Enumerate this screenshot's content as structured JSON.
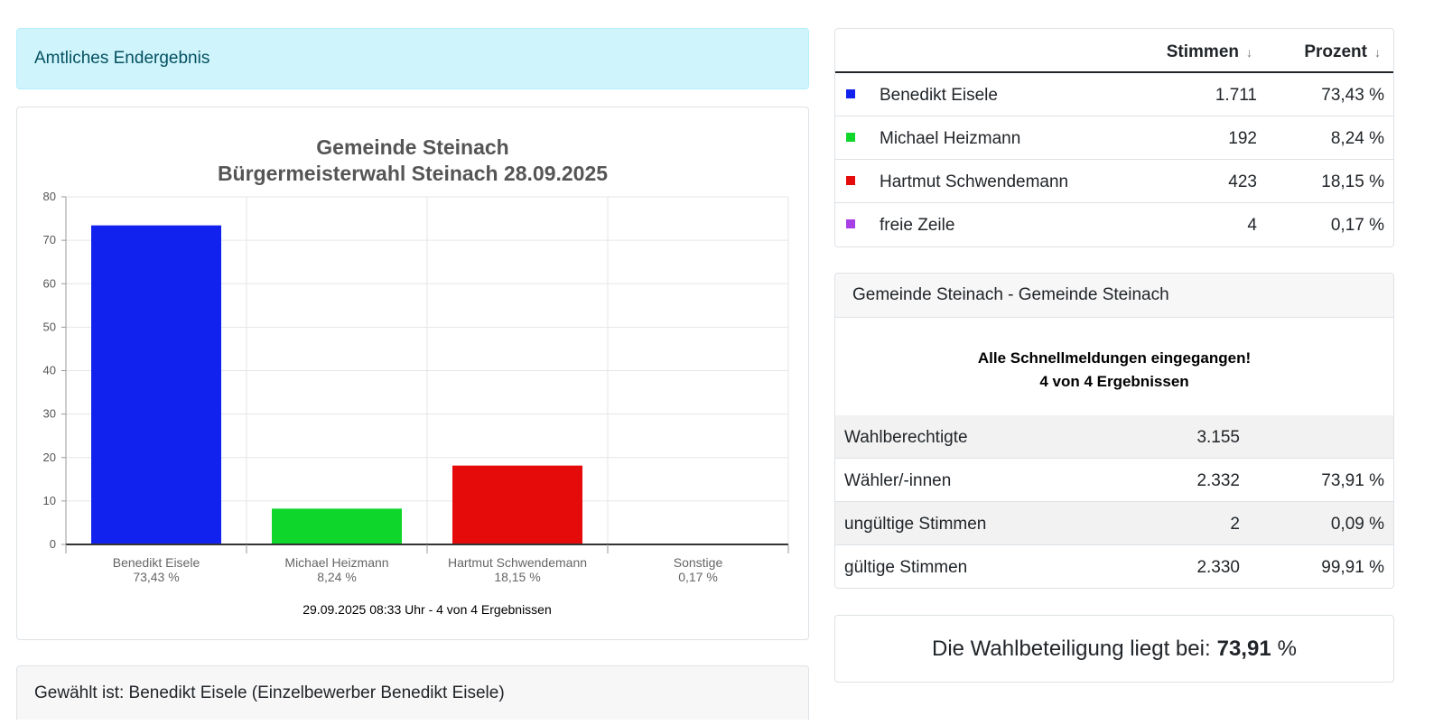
{
  "alert": {
    "text": "Amtliches Endergebnis"
  },
  "chart_data": {
    "type": "bar",
    "title": "Gemeinde Steinach",
    "subtitle": "Bürgermeisterwahl Steinach 28.09.2025",
    "categories": [
      "Benedikt Eisele",
      "Michael Heizmann",
      "Hartmut Schwendemann",
      "Sonstige"
    ],
    "value_labels": [
      "73,43 %",
      "8,24 %",
      "18,15 %",
      "0,17 %"
    ],
    "values": [
      73.43,
      8.24,
      18.15,
      0.17
    ],
    "colors": [
      "#1122ee",
      "#0fd62a",
      "#e50b0b",
      "#a83ee6"
    ],
    "ylim": [
      0,
      80
    ],
    "yticks": [
      0,
      10,
      20,
      30,
      40,
      50,
      60,
      70,
      80
    ],
    "grid": true,
    "footer": "29.09.2025 08:33 Uhr - 4 von 4 Ergebnissen"
  },
  "elected": {
    "text": "Gewählt ist: Benedikt Eisele (Einzelbewerber Benedikt Eisele)"
  },
  "votes_table": {
    "header_votes": "Stimmen",
    "header_pct": "Prozent",
    "sort_icon": "↓",
    "rows": [
      {
        "name": "Benedikt Eisele",
        "votes": "1.711",
        "pct": "73,43 %",
        "color": "#1122ee"
      },
      {
        "name": "Michael Heizmann",
        "votes": "192",
        "pct": "8,24 %",
        "color": "#0fd62a"
      },
      {
        "name": "Hartmut Schwendemann",
        "votes": "423",
        "pct": "18,15 %",
        "color": "#e50b0b"
      },
      {
        "name": "freie Zeile",
        "votes": "4",
        "pct": "0,17 %",
        "color": "#a83ee6"
      }
    ]
  },
  "stats": {
    "header": "Gemeinde Steinach - Gemeinde Steinach",
    "notice_line1": "Alle Schnellmeldungen eingegangen!",
    "notice_line2": "4 von 4 Ergebnissen",
    "rows": [
      {
        "label": "Wahlberechtigte",
        "num": "3.155",
        "pct": ""
      },
      {
        "label": "Wähler/-innen",
        "num": "2.332",
        "pct": "73,91 %"
      },
      {
        "label": "ungültige Stimmen",
        "num": "2",
        "pct": "0,09 %"
      },
      {
        "label": "gültige Stimmen",
        "num": "2.330",
        "pct": "99,91 %"
      }
    ]
  },
  "turnout": {
    "prefix": "Die Wahlbeteiligung liegt bei:",
    "value": "73,91",
    "suffix": "%"
  }
}
